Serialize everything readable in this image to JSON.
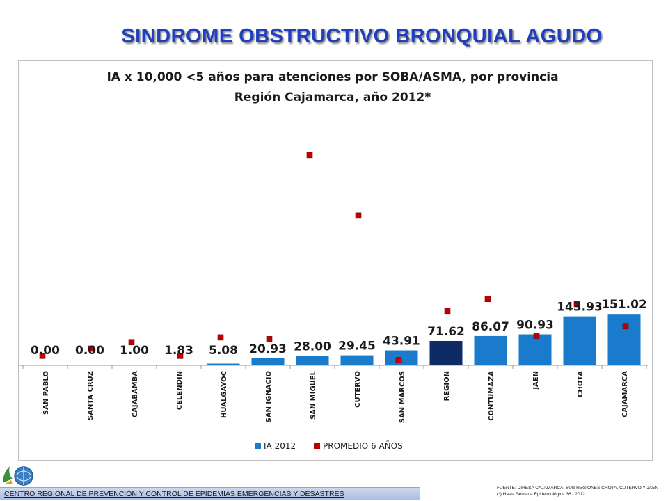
{
  "slide": {
    "title": "SINDROME OBSTRUCTIVO BRONQUIAL AGUDO",
    "footer": "CENTRO REGIONAL DE PREVENCIÓN Y CONTROL DE EPIDEMIAS EMERGENCIAS Y DESASTRES",
    "source_line1": "FUENTE: DIRESA CAJAMARCA, SUB REGIONES CHOTA, CUTERVO Y JAEN",
    "source_line2": "(*) Hasta Semana Epidemiológica 36 - 2012"
  },
  "chart_data": {
    "type": "bar",
    "title": "IA x 10,000 <5 años para atenciones por  SOBA/ASMA, por provincia",
    "subtitle": "Región Cajamarca, año 2012*",
    "categories": [
      "SAN PABLO",
      "SANTA CRUZ",
      "CAJABAMBA",
      "CELENDIN",
      "HUALGAYOC",
      "SAN IGNACIO",
      "SAN MIGUEL",
      "CUTERVO",
      "SAN MARCOS",
      "REGION",
      "CONTUMAZA",
      "JAEN",
      "CHOTA",
      "CAJAMARCA"
    ],
    "series": [
      {
        "name": "IA 2012",
        "mark": "bar",
        "color": "#1a7acb",
        "highlight_color": "#0f2b66",
        "highlight_category": "REGION",
        "values": [
          0.0,
          0.0,
          1.0,
          1.83,
          5.08,
          20.93,
          28.0,
          29.45,
          43.91,
          71.62,
          86.07,
          90.93,
          143.93,
          151.02
        ],
        "labels": [
          "0.00",
          "0.00",
          "1.00",
          "1.83",
          "5.08",
          "20.93",
          "28.00",
          "29.45",
          "43.91",
          "71.62",
          "86.07",
          "90.93",
          "143.93",
          "151.02"
        ]
      },
      {
        "name": "PROMEDIO 6 AÑOS",
        "mark": "square-marker",
        "color": "#c00000",
        "values": [
          28,
          49,
          68,
          28,
          82,
          77,
          618,
          440,
          15,
          160,
          195,
          87,
          180,
          115
        ]
      }
    ],
    "ylim": [
      0,
      720
    ],
    "grid": false,
    "legend": "bottom-center"
  }
}
